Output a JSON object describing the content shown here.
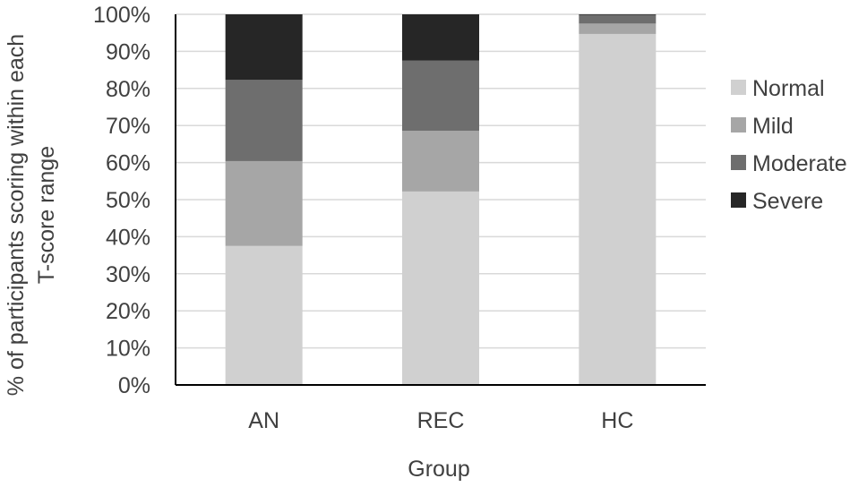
{
  "chart_data": {
    "type": "bar",
    "stacked": true,
    "title": "",
    "xlabel": "Group",
    "ylabel": [
      "% of participants scoring within each",
      "T-score range"
    ],
    "categories": [
      "AN",
      "REC",
      "HC"
    ],
    "ylim": [
      0,
      100
    ],
    "yticks": [
      0,
      10,
      20,
      30,
      40,
      50,
      60,
      70,
      80,
      90,
      100
    ],
    "ytick_suffix": "%",
    "grid": true,
    "legend_position": "right",
    "series": [
      {
        "name": "Normal",
        "color": "#d0d0d0",
        "values": [
          37.5,
          52.2,
          94.7
        ]
      },
      {
        "name": "Mild",
        "color": "#a6a6a6",
        "values": [
          22.9,
          16.4,
          2.8
        ]
      },
      {
        "name": "Moderate",
        "color": "#6e6e6e",
        "values": [
          21.9,
          18.9,
          2.3
        ]
      },
      {
        "name": "Severe",
        "color": "#262626",
        "values": [
          17.7,
          12.5,
          0.2
        ]
      }
    ]
  }
}
